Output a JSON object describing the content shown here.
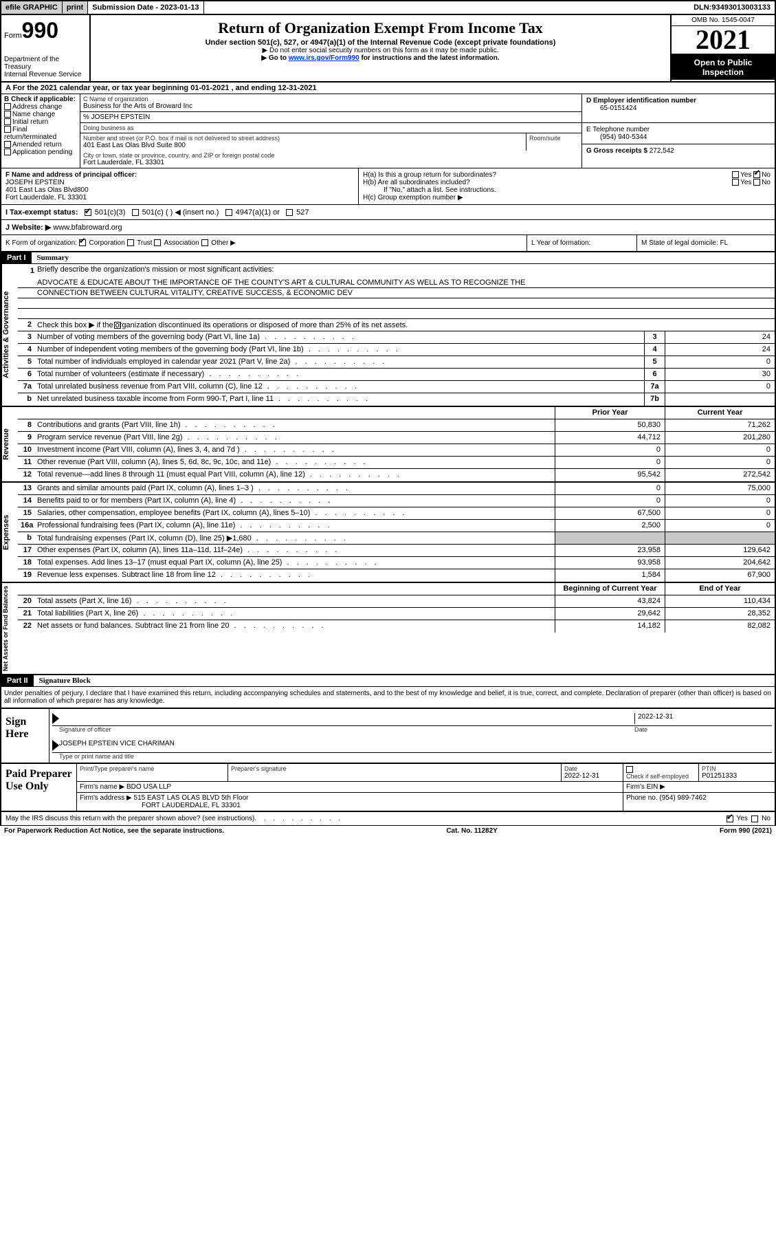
{
  "topbar": {
    "efile": "efile GRAPHIC",
    "print": "print",
    "submission_label": "Submission Date - ",
    "submission_date": "2023-01-13",
    "dln_label": "DLN: ",
    "dln": "93493013003133"
  },
  "header": {
    "form_label": "Form",
    "form_number": "990",
    "dept": "Department of the Treasury",
    "irs": "Internal Revenue Service",
    "title": "Return of Organization Exempt From Income Tax",
    "subtitle": "Under section 501(c), 527, or 4947(a)(1) of the Internal Revenue Code (except private foundations)",
    "note1": "▶ Do not enter social security numbers on this form as it may be made public.",
    "note2_pre": "▶ Go to ",
    "note2_link": "www.irs.gov/Form990",
    "note2_post": " for instructions and the latest information.",
    "omb": "OMB No. 1545-0047",
    "year": "2021",
    "open": "Open to Public Inspection"
  },
  "rowA": {
    "text_pre": "A For the 2021 calendar year, or tax year beginning ",
    "begin": "01-01-2021",
    "mid": "   , and ending ",
    "end": "12-31-2021"
  },
  "colB": {
    "label": "B Check if applicable:",
    "opts": [
      "Address change",
      "Name change",
      "Initial return",
      "Final return/terminated",
      "Amended return",
      "Application pending"
    ]
  },
  "colC": {
    "name_label": "C Name of organization",
    "name": "Business for the Arts of Broward Inc",
    "care_of": "% JOSEPH EPSTEIN",
    "dba_label": "Doing business as",
    "street_label": "Number and street (or P.O. box if mail is not delivered to street address)",
    "street": "401 East Las Olas Blvd Suite 800",
    "suite_label": "Room/suite",
    "city_label": "City or town, state or province, country, and ZIP or foreign postal code",
    "city": "Fort Lauderdale, FL  33301"
  },
  "colDEG": {
    "d_label": "D Employer identification number",
    "d_val": "65-0151424",
    "e_label": "E Telephone number",
    "e_val": "(954) 940-5344",
    "g_label": "G Gross receipts $ ",
    "g_val": "272,542"
  },
  "colF": {
    "label": "F  Name and address of principal officer:",
    "name": "JOSEPH EPSTEIN",
    "addr1": "401 East Las Olas Blvd800",
    "addr2": "Fort Lauderdale, FL  33301"
  },
  "colH": {
    "ha": "H(a)  Is this a group return for subordinates?",
    "hb": "H(b)  Are all subordinates included?",
    "hb_note": "If \"No,\" attach a list. See instructions.",
    "hc": "H(c)  Group exemption number ▶",
    "yes": "Yes",
    "no": "No"
  },
  "rowI": {
    "label": "I   Tax-exempt status:",
    "o1": "501(c)(3)",
    "o2": "501(c) (  ) ◀ (insert no.)",
    "o3": "4947(a)(1) or",
    "o4": "527"
  },
  "rowJ": {
    "label": "J   Website: ▶",
    "val": " www.bfabroward.org"
  },
  "rowK": {
    "label": "K Form of organization:",
    "o1": "Corporation",
    "o2": "Trust",
    "o3": "Association",
    "o4": "Other ▶"
  },
  "rowL": {
    "label": "L Year of formation:"
  },
  "rowM": {
    "label": "M State of legal domicile: ",
    "val": "FL"
  },
  "part1": {
    "header": "Part I",
    "title": "Summary",
    "line1_label": "Briefly describe the organization's mission or most significant activities:",
    "mission1": "ADVOCATE & EDUCATE ABOUT THE IMPORTANCE OF THE COUNTY'S ART & CULTURAL COMMUNITY AS WELL AS TO RECOGNIZE THE",
    "mission2": "CONNECTION BETWEEN CULTURAL VITALITY, CREATIVE SUCCESS, & ECONOMIC DEV",
    "line2": "Check this box ▶        if the organization discontinued its operations or disposed of more than 25% of its net assets.",
    "lines_ag": [
      {
        "n": "3",
        "t": "Number of voting members of the governing body (Part VI, line 1a)",
        "box": "3",
        "v": "24"
      },
      {
        "n": "4",
        "t": "Number of independent voting members of the governing body (Part VI, line 1b)",
        "box": "4",
        "v": "24"
      },
      {
        "n": "5",
        "t": "Total number of individuals employed in calendar year 2021 (Part V, line 2a)",
        "box": "5",
        "v": "0"
      },
      {
        "n": "6",
        "t": "Total number of volunteers (estimate if necessary)",
        "box": "6",
        "v": "30"
      },
      {
        "n": "7a",
        "t": "Total unrelated business revenue from Part VIII, column (C), line 12",
        "box": "7a",
        "v": "0"
      },
      {
        "n": "b",
        "t": "Net unrelated business taxable income from Form 990-T, Part I, line 11",
        "box": "7b",
        "v": ""
      }
    ],
    "prior_label": "Prior Year",
    "curr_label": "Current Year",
    "rev": [
      {
        "n": "8",
        "t": "Contributions and grants (Part VIII, line 1h)",
        "p": "50,830",
        "c": "71,262"
      },
      {
        "n": "9",
        "t": "Program service revenue (Part VIII, line 2g)",
        "p": "44,712",
        "c": "201,280"
      },
      {
        "n": "10",
        "t": "Investment income (Part VIII, column (A), lines 3, 4, and 7d )",
        "p": "0",
        "c": "0"
      },
      {
        "n": "11",
        "t": "Other revenue (Part VIII, column (A), lines 5, 6d, 8c, 9c, 10c, and 11e)",
        "p": "0",
        "c": "0"
      },
      {
        "n": "12",
        "t": "Total revenue—add lines 8 through 11 (must equal Part VIII, column (A), line 12)",
        "p": "95,542",
        "c": "272,542"
      }
    ],
    "exp": [
      {
        "n": "13",
        "t": "Grants and similar amounts paid (Part IX, column (A), lines 1–3 )",
        "p": "0",
        "c": "75,000"
      },
      {
        "n": "14",
        "t": "Benefits paid to or for members (Part IX, column (A), line 4)",
        "p": "0",
        "c": "0"
      },
      {
        "n": "15",
        "t": "Salaries, other compensation, employee benefits (Part IX, column (A), lines 5–10)",
        "p": "67,500",
        "c": "0"
      },
      {
        "n": "16a",
        "t": "Professional fundraising fees (Part IX, column (A), line 11e)",
        "p": "2,500",
        "c": "0"
      },
      {
        "n": "b",
        "t": "Total fundraising expenses (Part IX, column (D), line 25) ▶1,680",
        "p": "",
        "c": "",
        "shaded": true
      },
      {
        "n": "17",
        "t": "Other expenses (Part IX, column (A), lines 11a–11d, 11f–24e)",
        "p": "23,958",
        "c": "129,642"
      },
      {
        "n": "18",
        "t": "Total expenses. Add lines 13–17 (must equal Part IX, column (A), line 25)",
        "p": "93,958",
        "c": "204,642"
      },
      {
        "n": "19",
        "t": "Revenue less expenses. Subtract line 18 from line 12",
        "p": "1,584",
        "c": "67,900"
      }
    ],
    "begin_label": "Beginning of Current Year",
    "end_label": "End of Year",
    "net": [
      {
        "n": "20",
        "t": "Total assets (Part X, line 16)",
        "p": "43,824",
        "c": "110,434"
      },
      {
        "n": "21",
        "t": "Total liabilities (Part X, line 26)",
        "p": "29,642",
        "c": "28,352"
      },
      {
        "n": "22",
        "t": "Net assets or fund balances. Subtract line 21 from line 20",
        "p": "14,182",
        "c": "82,082"
      }
    ],
    "vert_ag": "Activities & Governance",
    "vert_rev": "Revenue",
    "vert_exp": "Expenses",
    "vert_net": "Net Assets or Fund Balances"
  },
  "part2": {
    "header": "Part II",
    "title": "Signature Block",
    "decl": "Under penalties of perjury, I declare that I have examined this return, including accompanying schedules and statements, and to the best of my knowledge and belief, it is true, correct, and complete. Declaration of preparer (other than officer) is based on all information of which preparer has any knowledge.",
    "sign_here": "Sign Here",
    "sig_officer": "Signature of officer",
    "sig_date": "2022-12-31",
    "date_label": "Date",
    "officer_name": "JOSEPH EPSTEIN  VICE CHARIMAN",
    "type_name": "Type or print name and title",
    "paid_label": "Paid Preparer Use Only",
    "prep_name_label": "Print/Type preparer's name",
    "prep_sig_label": "Preparer's signature",
    "prep_date": "2022-12-31",
    "check_self": "Check         if self-employed",
    "ptin_label": "PTIN",
    "ptin": "P01251333",
    "firm_name_label": "Firm's name     ▶",
    "firm_name": "BDO USA LLP",
    "firm_ein_label": "Firm's EIN ▶",
    "firm_addr_label": "Firm's address ▶",
    "firm_addr1": "515 EAST LAS OLAS BLVD 5th Floor",
    "firm_addr2": "FORT LAUDERDALE, FL  33301",
    "phone_label": "Phone no. ",
    "phone": "(954) 989-7462",
    "discuss": "May the IRS discuss this return with the preparer shown above? (see instructions)",
    "yes": "Yes",
    "no": "No"
  },
  "footer": {
    "pra": "For Paperwork Reduction Act Notice, see the separate instructions.",
    "cat": "Cat. No. 11282Y",
    "form": "Form 990 (2021)"
  }
}
